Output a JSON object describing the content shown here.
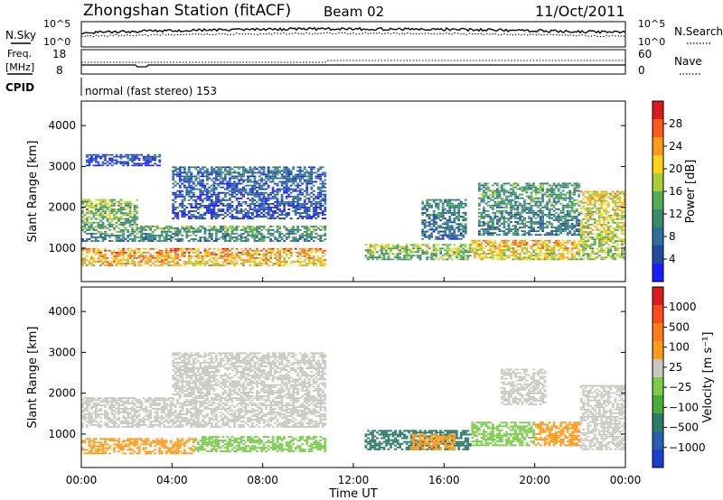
{
  "header": {
    "station": "Zhongshan Station (fitACF)",
    "beam": "Beam 02",
    "date": "11/Oct/2011"
  },
  "noise_panel": {
    "left_label": "N.Sky",
    "left_ticks": [
      "10^5",
      "10^0"
    ],
    "right_ticks": [
      "10^5",
      "10^0"
    ],
    "right_label": "N.Search"
  },
  "freq_panel": {
    "left_label_line1": "Freq.",
    "left_label_line2": "[MHz]",
    "left_ticks": [
      "18",
      "8"
    ],
    "right_ticks": [
      "60",
      "0"
    ],
    "right_label": "Nave"
  },
  "cpid": {
    "label": "CPID",
    "mode": "normal (fast stereo) 153"
  },
  "x_axis": {
    "title": "Time UT",
    "ticks": [
      "00:00",
      "04:00",
      "08:00",
      "12:00",
      "16:00",
      "20:00",
      "00:00"
    ]
  },
  "chart_data": [
    {
      "type": "heatmap",
      "name": "power",
      "ylabel": "Slant Range [km]",
      "ylim": [
        180,
        4600
      ],
      "yticks": [
        "1000",
        "2000",
        "3000",
        "4000"
      ],
      "xlim_hours": [
        0,
        24
      ],
      "colorbar": {
        "label": "Power [dB]",
        "ticks": [
          "4",
          "8",
          "12",
          "16",
          "20",
          "24",
          "28"
        ],
        "colors": [
          "#1a1aff",
          "#1f4aa0",
          "#2d6f9a",
          "#3a8a6a",
          "#55aa55",
          "#a6cf3a",
          "#ffd21a",
          "#ff9a1a",
          "#ff5a1a",
          "#e01a1a"
        ]
      },
      "regions": [
        {
          "t": [
            0.0,
            10.8
          ],
          "r": [
            550,
            1000
          ],
          "level": 0.78
        },
        {
          "t": [
            0.0,
            10.8
          ],
          "r": [
            1150,
            1550
          ],
          "level": 0.42
        },
        {
          "t": [
            0.0,
            2.5
          ],
          "r": [
            1550,
            2200
          ],
          "level": 0.55
        },
        {
          "t": [
            4.0,
            10.8
          ],
          "r": [
            1700,
            3000
          ],
          "level": 0.25
        },
        {
          "t": [
            0.2,
            3.5
          ],
          "r": [
            3000,
            3300
          ],
          "level": 0.18
        },
        {
          "t": [
            12.5,
            17.2
          ],
          "r": [
            700,
            1100
          ],
          "level": 0.55
        },
        {
          "t": [
            15.0,
            17.0
          ],
          "r": [
            1200,
            2200
          ],
          "level": 0.35
        },
        {
          "t": [
            17.2,
            22.0
          ],
          "r": [
            700,
            1200
          ],
          "level": 0.72
        },
        {
          "t": [
            17.5,
            22.0
          ],
          "r": [
            1300,
            2600
          ],
          "level": 0.4
        },
        {
          "t": [
            22.0,
            24.0
          ],
          "r": [
            700,
            2400
          ],
          "level": 0.65
        }
      ]
    },
    {
      "type": "heatmap",
      "name": "velocity",
      "ylabel": "Slant Range [km]",
      "ylim": [
        180,
        4600
      ],
      "yticks": [
        "1000",
        "2000",
        "3000",
        "4000"
      ],
      "xlim_hours": [
        0,
        24
      ],
      "colorbar": {
        "label": "Velocity [m s⁻¹]",
        "ticks": [
          "1000",
          "500",
          "100",
          "25",
          "−25",
          "−100",
          "−500",
          "−1000"
        ],
        "colors": [
          "#1a3fcc",
          "#2a5fb0",
          "#2d7a6a",
          "#4aaa3a",
          "#7acc4a",
          "#c8c8c0",
          "#ff9a1a",
          "#ff7a1a",
          "#ff4a1a",
          "#e01a1a"
        ]
      },
      "regions": [
        {
          "t": [
            0.0,
            5.0
          ],
          "r": [
            500,
            900
          ],
          "color": "#ff9a1a"
        },
        {
          "t": [
            5.0,
            10.8
          ],
          "r": [
            550,
            950
          ],
          "color": "#7acc4a"
        },
        {
          "t": [
            0.0,
            10.8
          ],
          "r": [
            1150,
            1900
          ],
          "color": "#c8c8c0"
        },
        {
          "t": [
            4.0,
            10.8
          ],
          "r": [
            1900,
            3000
          ],
          "color": "#c8c8c0"
        },
        {
          "t": [
            12.5,
            17.2
          ],
          "r": [
            600,
            1100
          ],
          "color": "#2d7a6a"
        },
        {
          "t": [
            14.5,
            16.5
          ],
          "r": [
            600,
            1000
          ],
          "color": "#ff9a1a"
        },
        {
          "t": [
            17.2,
            20.0
          ],
          "r": [
            700,
            1300
          ],
          "color": "#7acc4a"
        },
        {
          "t": [
            20.0,
            22.0
          ],
          "r": [
            700,
            1300
          ],
          "color": "#ff9a1a"
        },
        {
          "t": [
            18.5,
            20.5
          ],
          "r": [
            1700,
            2600
          ],
          "color": "#c8c8c0"
        },
        {
          "t": [
            22.0,
            24.0
          ],
          "r": [
            600,
            2200
          ],
          "color": "#c8c8c0"
        }
      ]
    }
  ]
}
